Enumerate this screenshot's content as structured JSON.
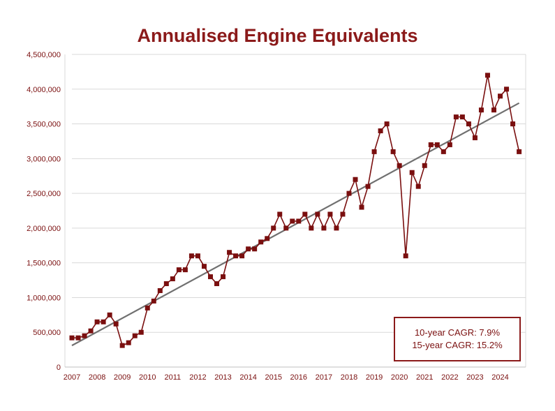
{
  "chart_data": {
    "type": "line",
    "title": "Annualised Engine Equivalents",
    "xlabel": "",
    "ylabel": "",
    "ylim": [
      0,
      4500000
    ],
    "xlim": [
      2007,
      2024.9
    ],
    "yticks": [
      0,
      500000,
      1000000,
      1500000,
      2000000,
      2500000,
      3000000,
      3500000,
      4000000,
      4500000
    ],
    "ytick_labels": [
      "0",
      "500,000",
      "1,000,000",
      "1,500,000",
      "2,000,000",
      "2,500,000",
      "3,000,000",
      "3,500,000",
      "4,000,000",
      "4,500,000"
    ],
    "xticks": [
      2007,
      2008,
      2009,
      2010,
      2011,
      2012,
      2013,
      2014,
      2015,
      2016,
      2017,
      2018,
      2019,
      2020,
      2021,
      2022,
      2023,
      2024
    ],
    "xtick_labels": [
      "2007",
      "2008",
      "2009",
      "2010",
      "2011",
      "2012",
      "2013",
      "2014",
      "2015",
      "2016",
      "2017",
      "2018",
      "2019",
      "2020",
      "2021",
      "2022",
      "2023",
      "2024"
    ],
    "grid": true,
    "legend": "none",
    "series": [
      {
        "color": "#7a0f0f",
        "marker": "square",
        "x": [
          2007.0,
          2007.25,
          2007.5,
          2007.75,
          2008.0,
          2008.25,
          2008.5,
          2008.75,
          2009.0,
          2009.25,
          2009.5,
          2009.75,
          2010.0,
          2010.25,
          2010.5,
          2010.75,
          2011.0,
          2011.25,
          2011.5,
          2011.75,
          2012.0,
          2012.25,
          2012.5,
          2012.75,
          2013.0,
          2013.25,
          2013.5,
          2013.75,
          2014.0,
          2014.25,
          2014.5,
          2014.75,
          2015.0,
          2015.25,
          2015.5,
          2015.75,
          2016.0,
          2016.25,
          2016.5,
          2016.75,
          2017.0,
          2017.25,
          2017.5,
          2017.75,
          2018.0,
          2018.25,
          2018.5,
          2018.75,
          2019.0,
          2019.25,
          2019.5,
          2019.75,
          2020.0,
          2020.25,
          2020.5,
          2020.75,
          2021.0,
          2021.25,
          2021.5,
          2021.75,
          2022.0,
          2022.25,
          2022.5,
          2022.75,
          2023.0,
          2023.25,
          2023.5,
          2023.75,
          2024.0,
          2024.25,
          2024.5,
          2024.75
        ],
        "values": [
          420000,
          420000,
          450000,
          520000,
          650000,
          650000,
          750000,
          620000,
          310000,
          350000,
          450000,
          500000,
          850000,
          950000,
          1100000,
          1200000,
          1270000,
          1400000,
          1400000,
          1600000,
          1600000,
          1450000,
          1300000,
          1200000,
          1300000,
          1650000,
          1600000,
          1600000,
          1700000,
          1700000,
          1800000,
          1850000,
          2000000,
          2200000,
          2000000,
          2100000,
          2100000,
          2200000,
          2000000,
          2200000,
          2000000,
          2200000,
          2000000,
          2200000,
          2500000,
          2700000,
          2300000,
          2600000,
          3100000,
          3400000,
          3500000,
          3100000,
          2900000,
          1600000,
          2800000,
          2600000,
          2900000,
          3200000,
          3200000,
          3100000,
          3200000,
          3600000,
          3600000,
          3500000,
          3300000,
          3700000,
          4200000,
          3700000,
          3900000,
          4000000,
          3500000,
          3100000
        ]
      }
    ],
    "trendline": {
      "color": "#707070",
      "x": [
        2007.0,
        2024.75
      ],
      "values": [
        310000,
        3800000
      ]
    },
    "annotations": [
      "10-year CAGR: 7.9%",
      "15-year CAGR: 15.2%"
    ]
  }
}
